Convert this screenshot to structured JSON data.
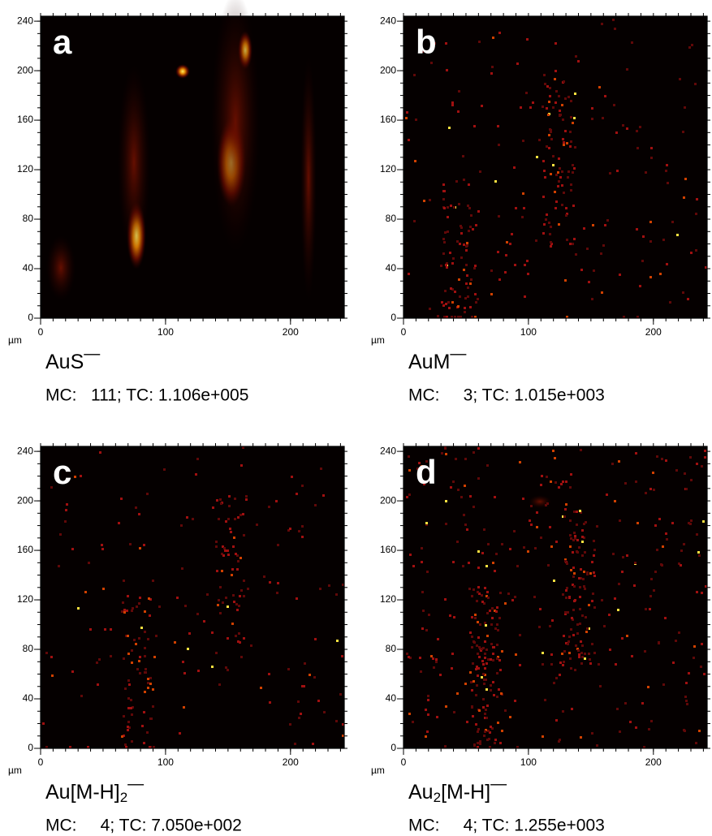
{
  "chart_data": [
    {
      "type": "image",
      "label": "a",
      "x_label": "µm",
      "ion": [
        {
          "text": "AuS"
        },
        {
          "text": "—",
          "sup": true
        }
      ],
      "caption": "MC:   111; TC: 1.106e+005",
      "xlim": [
        0,
        243
      ],
      "ylim": [
        0,
        244
      ],
      "xticks": [
        0,
        100,
        200
      ],
      "yticks": [
        0,
        40,
        80,
        120,
        160,
        200,
        240
      ]
    },
    {
      "type": "image",
      "label": "b",
      "x_label": "µm",
      "ion": [
        {
          "text": "AuM"
        },
        {
          "text": "—",
          "sup": true
        }
      ],
      "caption": "MC:     3; TC: 1.015e+003",
      "xlim": [
        0,
        243
      ],
      "ylim": [
        0,
        244
      ],
      "xticks": [
        0,
        100,
        200
      ],
      "yticks": [
        0,
        40,
        80,
        120,
        160,
        200,
        240
      ]
    },
    {
      "type": "image",
      "label": "c",
      "x_label": "µm",
      "ion": [
        {
          "text": "Au[M-H]"
        },
        {
          "text": "2",
          "sub": true
        },
        {
          "text": "—",
          "sup": true
        }
      ],
      "caption": "MC:     4; TC: 7.050e+002",
      "xlim": [
        0,
        243
      ],
      "ylim": [
        0,
        244
      ],
      "xticks": [
        0,
        100,
        200
      ],
      "yticks": [
        0,
        40,
        80,
        120,
        160,
        200,
        240
      ]
    },
    {
      "type": "image",
      "label": "d",
      "x_label": "µm",
      "ion": [
        {
          "text": "Au"
        },
        {
          "text": "2",
          "sub": true
        },
        {
          "text": "[M-H]"
        },
        {
          "text": "—",
          "sup": true
        }
      ],
      "caption": "MC:     4; TC: 1.255e+003",
      "xlim": [
        0,
        243
      ],
      "ylim": [
        0,
        244
      ],
      "xticks": [
        0,
        100,
        200
      ],
      "yticks": [
        0,
        40,
        80,
        120,
        160,
        200,
        240
      ]
    }
  ]
}
